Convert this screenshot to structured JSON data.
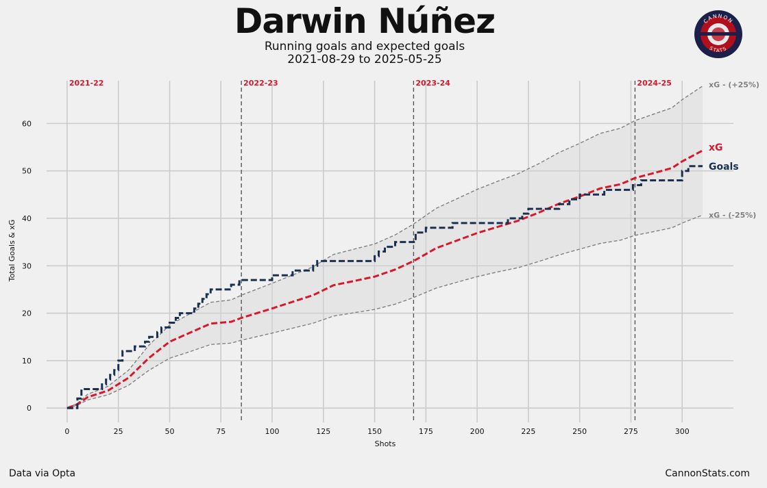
{
  "header": {
    "title": "Darwin Núñez",
    "subtitle_line1": "Running goals and expected goals",
    "subtitle_line2": "2021-08-29 to 2025-05-25"
  },
  "footer": {
    "source": "Data via Opta",
    "brand": "CannonStats.com"
  },
  "logo": {
    "top_text": "CANNON",
    "bottom_text": "STATS"
  },
  "colors": {
    "goals": "#1a3050",
    "xg": "#d7182a",
    "band": "#808080",
    "season_label": "#d7182a"
  },
  "chart_data": {
    "type": "line",
    "xlabel": "Shots",
    "ylabel": "Total Goals & xG",
    "xlim": [
      -10,
      325
    ],
    "ylim": [
      -3,
      69
    ],
    "x_ticks": [
      0,
      25,
      50,
      75,
      100,
      125,
      150,
      175,
      200,
      225,
      250,
      275,
      300
    ],
    "y_ticks": [
      0,
      10,
      20,
      30,
      40,
      50,
      60
    ],
    "grid": true,
    "seasons": [
      {
        "label": "2021-22",
        "x": 0
      },
      {
        "label": "2022-23",
        "x": 85
      },
      {
        "label": "2023-24",
        "x": 169
      },
      {
        "label": "2024-25",
        "x": 277
      }
    ],
    "series": [
      {
        "name": "Goals",
        "label": "Goals",
        "x": [
          0,
          3,
          5,
          7,
          15,
          17,
          19,
          21,
          23,
          25,
          27,
          29,
          31,
          33,
          38,
          40,
          42,
          44,
          46,
          48,
          50,
          53,
          55,
          62,
          64,
          66,
          68,
          70,
          72,
          80,
          82,
          84,
          86,
          100,
          108,
          110,
          120,
          122,
          124,
          150,
          152,
          155,
          158,
          160,
          165,
          170,
          175,
          180,
          188,
          210,
          215,
          222,
          225,
          240,
          245,
          250,
          258,
          262,
          276,
          280,
          285,
          300,
          303,
          310
        ],
        "y": [
          0,
          0,
          2,
          4,
          4,
          5,
          6,
          7,
          8,
          10,
          12,
          12,
          12,
          13,
          14,
          15,
          15,
          16,
          17,
          17,
          18,
          19,
          20,
          21,
          22,
          23,
          24,
          25,
          25,
          26,
          26,
          27,
          27,
          28,
          28,
          29,
          30,
          31,
          31,
          32,
          33,
          34,
          34,
          35,
          35,
          37,
          38,
          38,
          39,
          39,
          40,
          41,
          42,
          43,
          44,
          45,
          45,
          46,
          47,
          48,
          48,
          50,
          51,
          51
        ]
      },
      {
        "name": "xG",
        "label": "xG",
        "x": [
          0,
          5,
          10,
          20,
          30,
          40,
          50,
          60,
          70,
          80,
          85,
          100,
          120,
          130,
          140,
          150,
          160,
          169,
          180,
          190,
          200,
          210,
          220,
          230,
          240,
          250,
          260,
          270,
          277,
          285,
          295,
          300,
          310
        ],
        "y": [
          0,
          0.8,
          2.3,
          3.7,
          6.4,
          10.6,
          14,
          15.9,
          17.8,
          18.2,
          19,
          21,
          23.8,
          25.9,
          26.8,
          27.7,
          29.2,
          31,
          33.7,
          35.3,
          36.9,
          38.2,
          39.5,
          41.2,
          43.1,
          44.6,
          46.3,
          47.2,
          48.5,
          49.4,
          50.6,
          52,
          54.3
        ]
      },
      {
        "name": "xG - (+25%)",
        "label": "xG - (+25%)",
        "x": [
          0,
          5,
          10,
          20,
          30,
          40,
          50,
          60,
          70,
          80,
          85,
          100,
          120,
          130,
          140,
          150,
          160,
          169,
          180,
          190,
          200,
          210,
          220,
          230,
          240,
          250,
          260,
          270,
          277,
          285,
          295,
          300,
          310
        ],
        "y": [
          0,
          1,
          2.9,
          4.6,
          8,
          13.3,
          17.5,
          19.9,
          22.3,
          22.8,
          23.8,
          26.3,
          29.8,
          32.4,
          33.5,
          34.6,
          36.5,
          38.8,
          42.1,
          44.1,
          46.1,
          47.8,
          49.4,
          51.5,
          53.9,
          55.8,
          57.9,
          59,
          60.6,
          61.8,
          63.3,
          65,
          67.9
        ]
      },
      {
        "name": "xG - (-25%)",
        "label": "xG - (-25%)",
        "x": [
          0,
          5,
          10,
          20,
          30,
          40,
          50,
          60,
          70,
          80,
          85,
          100,
          120,
          130,
          140,
          150,
          160,
          169,
          180,
          190,
          200,
          210,
          220,
          230,
          240,
          250,
          260,
          270,
          277,
          285,
          295,
          300,
          310
        ],
        "y": [
          0,
          0.6,
          1.7,
          2.8,
          4.8,
          8,
          10.5,
          11.9,
          13.4,
          13.7,
          14.3,
          15.8,
          17.9,
          19.4,
          20.1,
          20.8,
          21.9,
          23.3,
          25.3,
          26.5,
          27.7,
          28.7,
          29.6,
          30.9,
          32.3,
          33.5,
          34.7,
          35.4,
          36.4,
          37.1,
          38,
          39,
          40.7
        ]
      }
    ]
  }
}
